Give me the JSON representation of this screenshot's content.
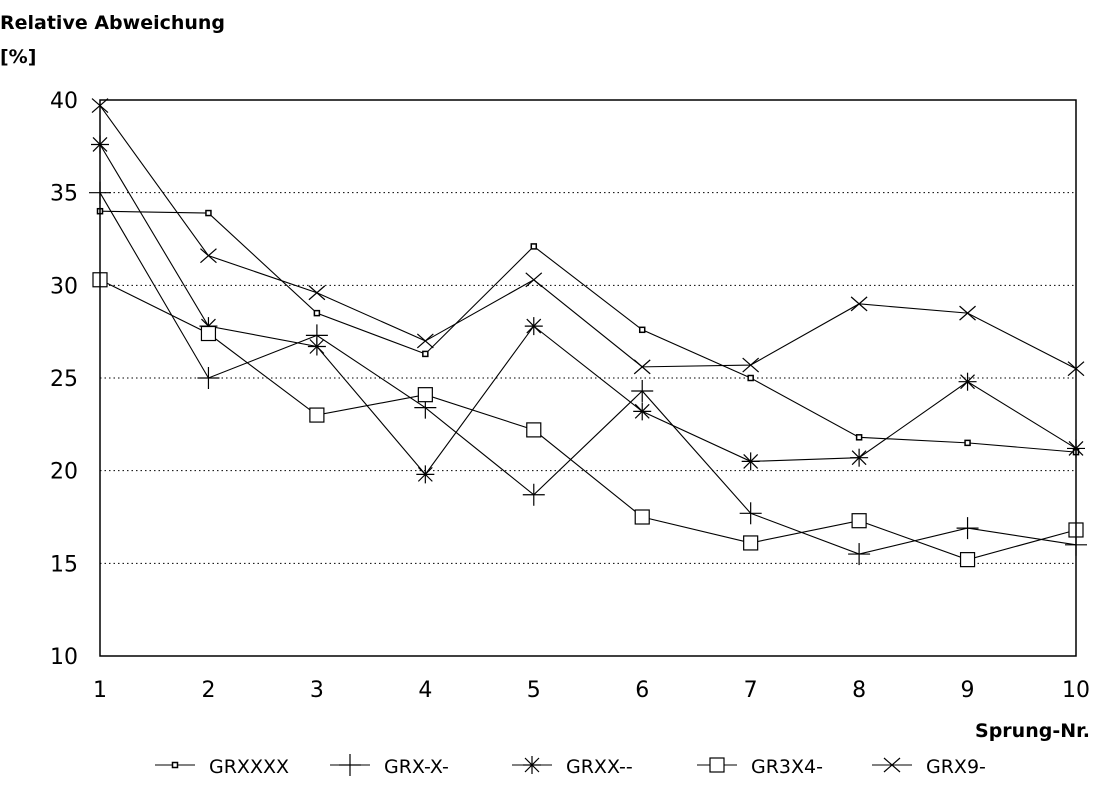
{
  "chart_data": {
    "type": "line",
    "ylabel_line1": "Relative Abweichung",
    "ylabel_line2": "[%]",
    "xlabel": "Sprung-Nr.",
    "x": [
      1,
      2,
      3,
      4,
      5,
      6,
      7,
      8,
      9,
      10
    ],
    "xlim": [
      1,
      10
    ],
    "ylim": [
      10,
      40
    ],
    "yticks": [
      10,
      15,
      20,
      25,
      30,
      35,
      40
    ],
    "grid": "horizontal-dotted",
    "legend_position": "bottom",
    "series": [
      {
        "name": "GRXXXX",
        "marker": "small-square",
        "values": [
          34.0,
          33.9,
          28.5,
          26.3,
          32.1,
          27.6,
          25.0,
          21.8,
          21.5,
          21.0
        ]
      },
      {
        "name": "GRX-X-",
        "marker": "plus",
        "values": [
          35.0,
          25.0,
          27.3,
          23.4,
          18.7,
          24.3,
          17.7,
          15.5,
          16.9,
          16.0
        ]
      },
      {
        "name": "GRXX--",
        "marker": "asterisk",
        "values": [
          37.6,
          27.8,
          26.7,
          19.8,
          27.8,
          23.2,
          20.5,
          20.7,
          24.8,
          21.2
        ]
      },
      {
        "name": "GR3X4-",
        "marker": "open-square",
        "values": [
          30.3,
          27.4,
          23.0,
          24.1,
          22.2,
          17.5,
          16.1,
          17.3,
          15.2,
          16.8
        ]
      },
      {
        "name": "GRX9-",
        "marker": "x",
        "values": [
          39.7,
          31.6,
          29.6,
          27.0,
          30.3,
          25.6,
          25.7,
          29.0,
          28.5,
          25.5
        ]
      }
    ]
  }
}
